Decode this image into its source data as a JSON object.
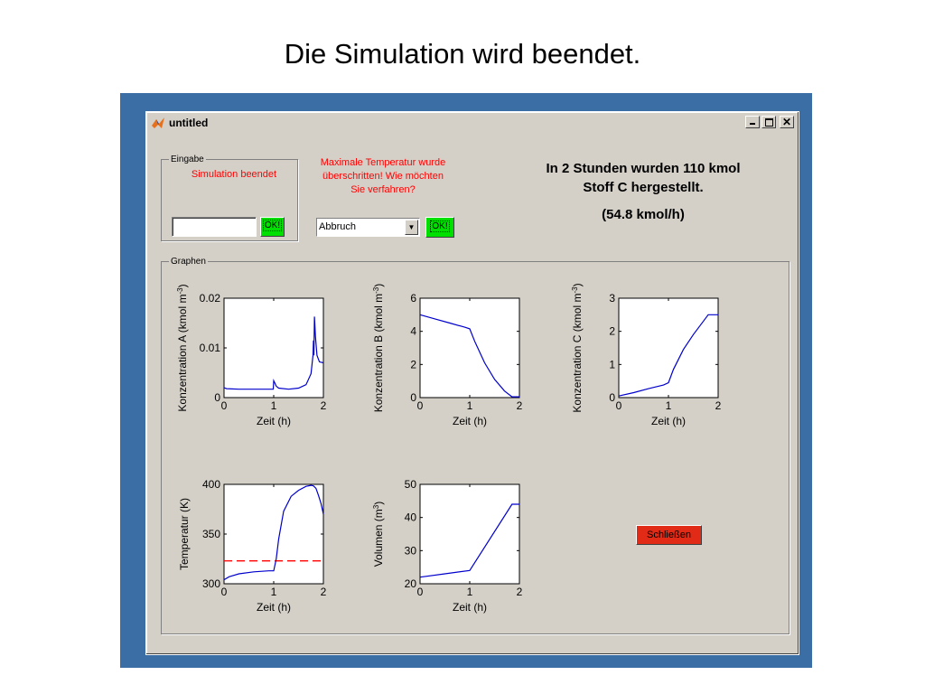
{
  "slide": {
    "title": "Die Simulation wird beendet."
  },
  "window": {
    "title": "untitled",
    "close_glyph": "✕"
  },
  "eingabe": {
    "legend": "Eingabe",
    "status": "Simulation beendet",
    "input_value": "",
    "ok_label": "OK!"
  },
  "message": {
    "line1": "Maximale Temperatur wurde",
    "line2": "überschritten! Wie möchten",
    "line3": "Sie verfahren?"
  },
  "action": {
    "selected": "Abbruch",
    "ok_label": "OK!"
  },
  "result": {
    "line1": "In 2 Stunden wurden 110 kmol",
    "line2": "Stoff C hergestellt.",
    "line3": "(54.8 kmol/h)"
  },
  "graphen": {
    "legend": "Graphen",
    "close_label": "Schließen"
  },
  "icons": {
    "app": "matlab-icon",
    "minimize": "minimize-icon",
    "maximize": "maximize-icon",
    "close": "close-icon",
    "dropdown": "dropdown-arrow-icon"
  },
  "colors": {
    "series": "#0000cc",
    "limit": "#ff0000",
    "close_button": "#e22b16",
    "ok_button": "#00e000"
  },
  "chart_data": [
    {
      "id": "A",
      "type": "line",
      "xlabel": "Zeit (h)",
      "ylabel_prefix": "Konzentration A (kmol m",
      "ylabel_sup": "-3",
      "ylabel_suffix": ")",
      "xlim": [
        0,
        2
      ],
      "ylim": [
        0,
        0.02
      ],
      "xticks": [
        0,
        1,
        2
      ],
      "xtick_labels": [
        "0",
        "1",
        "2"
      ],
      "yticks": [
        0,
        0.01,
        0.02
      ],
      "ytick_labels": [
        "0",
        "0.01",
        "0.02"
      ],
      "series": [
        {
          "x": [
            0,
            0.05,
            0.3,
            0.6,
            0.9,
            0.99,
            1.0,
            1.02,
            1.05,
            1.1,
            1.3,
            1.5,
            1.65,
            1.75,
            1.79,
            1.8,
            1.81,
            1.82,
            1.84,
            1.87,
            1.92,
            2.0
          ],
          "y": [
            0.002,
            0.0018,
            0.0017,
            0.0017,
            0.0017,
            0.0017,
            0.0034,
            0.003,
            0.0023,
            0.0019,
            0.0017,
            0.0019,
            0.0026,
            0.0048,
            0.0085,
            0.0115,
            0.0085,
            0.0163,
            0.0123,
            0.0085,
            0.0072,
            0.007
          ]
        }
      ]
    },
    {
      "id": "B",
      "type": "line",
      "xlabel": "Zeit (h)",
      "ylabel_prefix": "Konzentration B (kmol m",
      "ylabel_sup": "-3",
      "ylabel_suffix": ")",
      "xlim": [
        0,
        2
      ],
      "ylim": [
        0,
        6
      ],
      "xticks": [
        0,
        1,
        2
      ],
      "xtick_labels": [
        "0",
        "1",
        "2"
      ],
      "yticks": [
        0,
        2,
        4,
        6
      ],
      "ytick_labels": [
        "0",
        "2",
        "4",
        "6"
      ],
      "series": [
        {
          "x": [
            0,
            0.3,
            0.6,
            0.9,
            1.0,
            1.1,
            1.3,
            1.5,
            1.7,
            1.85,
            2.0
          ],
          "y": [
            5.0,
            4.75,
            4.5,
            4.25,
            4.15,
            3.4,
            2.1,
            1.1,
            0.4,
            0.05,
            0.05
          ]
        }
      ]
    },
    {
      "id": "C",
      "type": "line",
      "xlabel": "Zeit (h)",
      "ylabel_prefix": "Konzentration C (kmol m",
      "ylabel_sup": "-3",
      "ylabel_suffix": ")",
      "xlim": [
        0,
        2
      ],
      "ylim": [
        0,
        3
      ],
      "xticks": [
        0,
        1,
        2
      ],
      "xtick_labels": [
        "0",
        "1",
        "2"
      ],
      "yticks": [
        0,
        1,
        2,
        3
      ],
      "ytick_labels": [
        "0",
        "1",
        "2",
        "3"
      ],
      "series": [
        {
          "x": [
            0,
            0.3,
            0.6,
            0.9,
            1.0,
            1.1,
            1.3,
            1.5,
            1.7,
            1.8,
            2.0
          ],
          "y": [
            0.05,
            0.15,
            0.27,
            0.38,
            0.45,
            0.85,
            1.45,
            1.9,
            2.3,
            2.5,
            2.5
          ]
        }
      ]
    },
    {
      "id": "T",
      "type": "line",
      "xlabel": "Zeit (h)",
      "ylabel_prefix": "Temperatur (K)",
      "ylabel_sup": "",
      "ylabel_suffix": "",
      "xlim": [
        0,
        2
      ],
      "ylim": [
        300,
        400
      ],
      "xticks": [
        0,
        1,
        2
      ],
      "xtick_labels": [
        "0",
        "1",
        "2"
      ],
      "yticks": [
        300,
        350,
        400
      ],
      "ytick_labels": [
        "300",
        "350",
        "400"
      ],
      "hline": {
        "y": 323,
        "style": "dashed"
      },
      "series": [
        {
          "x": [
            0,
            0.1,
            0.3,
            0.6,
            0.9,
            1.0,
            1.05,
            1.1,
            1.2,
            1.35,
            1.5,
            1.65,
            1.75,
            1.8,
            1.85,
            1.9,
            1.95,
            2.0
          ],
          "y": [
            304,
            307,
            310,
            312,
            313,
            313,
            325,
            345,
            373,
            388,
            394,
            398,
            399,
            398.5,
            396,
            389,
            381,
            370
          ]
        }
      ]
    },
    {
      "id": "V",
      "type": "line",
      "xlabel": "Zeit (h)",
      "ylabel_prefix": "Volumen (m",
      "ylabel_sup": "3",
      "ylabel_suffix": ")",
      "xlim": [
        0,
        2
      ],
      "ylim": [
        20,
        50
      ],
      "xticks": [
        0,
        1,
        2
      ],
      "xtick_labels": [
        "0",
        "1",
        "2"
      ],
      "yticks": [
        20,
        30,
        40,
        50
      ],
      "ytick_labels": [
        "20",
        "30",
        "40",
        "50"
      ],
      "series": [
        {
          "x": [
            0,
            0.5,
            1.0,
            1.85,
            2.0
          ],
          "y": [
            22,
            23,
            24,
            44,
            44
          ]
        }
      ]
    }
  ]
}
